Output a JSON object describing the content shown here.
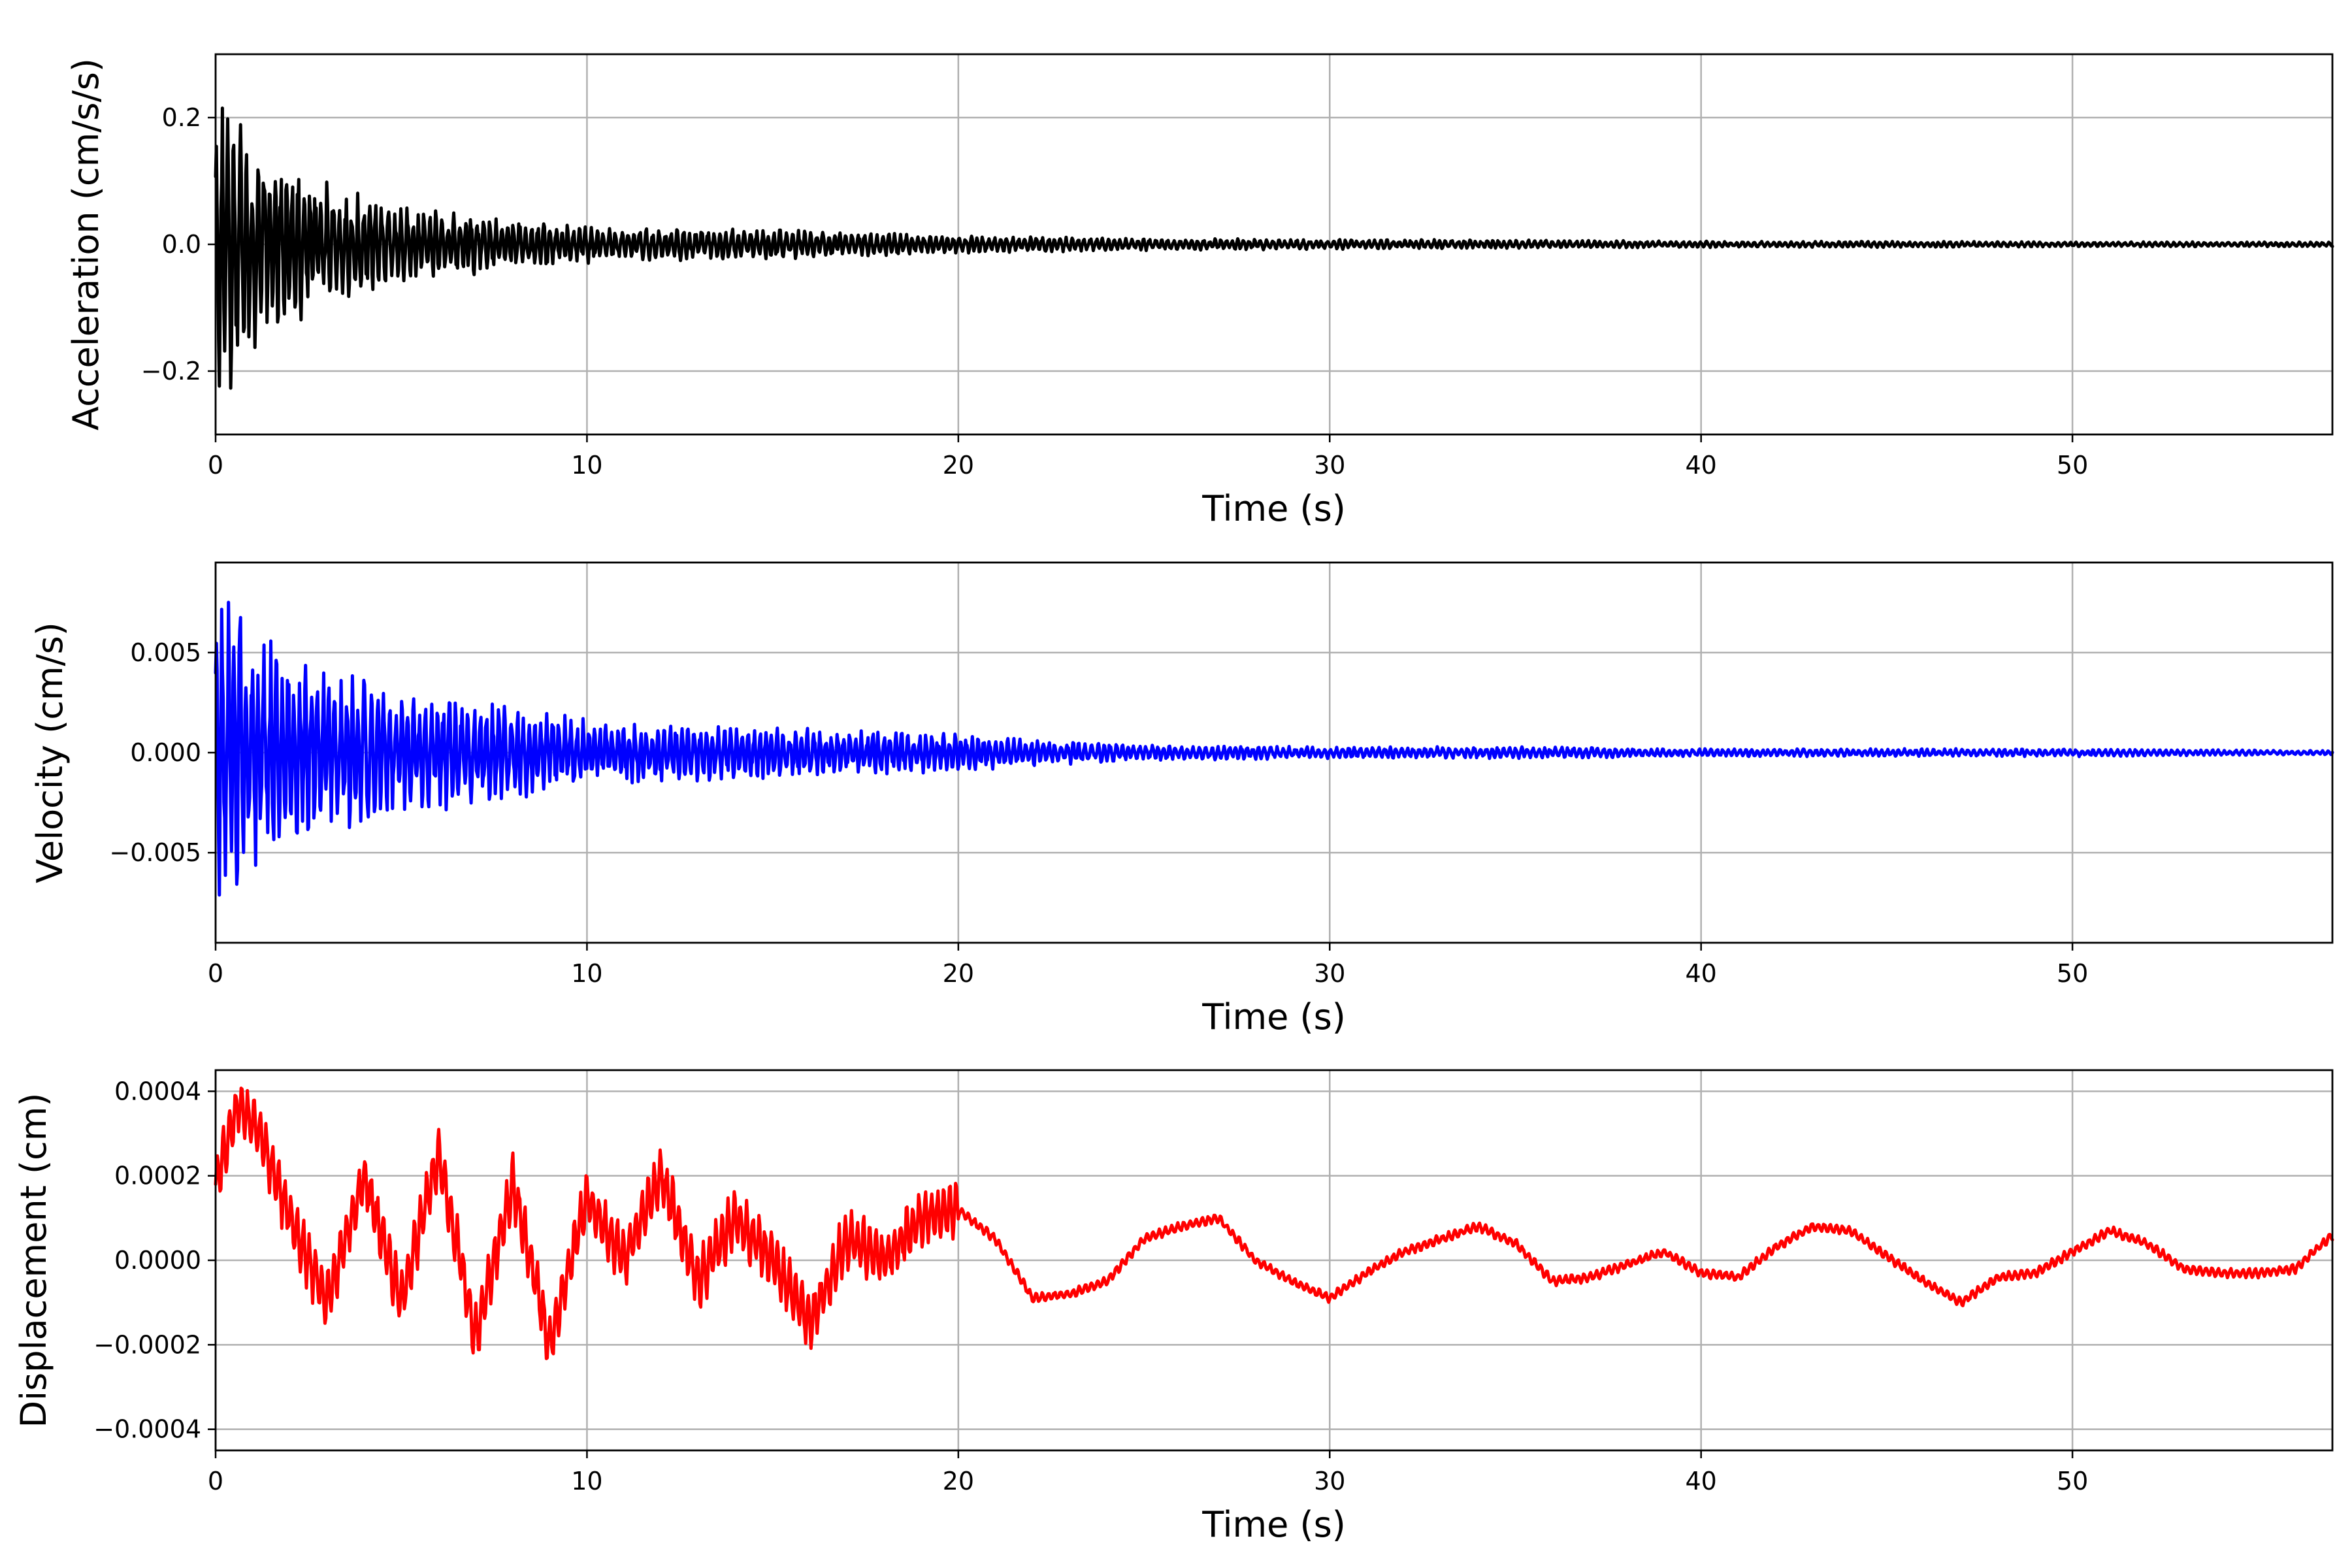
{
  "chart_data": [
    {
      "type": "line",
      "xlabel": "Time (s)",
      "ylabel": "Acceleration (cm/s/s)",
      "xlim": [
        0,
        57
      ],
      "ylim": [
        -0.3,
        0.3
      ],
      "xticks": [
        0,
        10,
        20,
        30,
        40,
        50
      ],
      "yticks": [
        -0.2,
        0.0,
        0.2
      ],
      "xtick_labels": [
        "0",
        "10",
        "20",
        "30",
        "40",
        "50"
      ],
      "ytick_labels": [
        "−0.2",
        "0.0",
        "0.2"
      ],
      "grid": true,
      "color": "#000000",
      "series": [
        {
          "x": [
            0,
            0.5,
            1,
            1.5,
            2,
            3,
            4,
            5,
            7,
            10,
            15,
            20,
            25,
            30,
            35,
            40,
            45,
            50,
            57
          ],
          "envelope": [
            0.28,
            0.24,
            0.18,
            0.15,
            0.14,
            0.1,
            0.08,
            0.06,
            0.05,
            0.03,
            0.025,
            0.015,
            0.01,
            0.008,
            0.007,
            0.005,
            0.005,
            0.004,
            0.004
          ]
        }
      ]
    },
    {
      "type": "line",
      "xlabel": "Time (s)",
      "ylabel": "Velocity (cm/s)",
      "xlim": [
        0,
        57
      ],
      "ylim": [
        -0.0095,
        0.0095
      ],
      "xticks": [
        0,
        10,
        20,
        30,
        40,
        50
      ],
      "yticks": [
        -0.005,
        0.0,
        0.005
      ],
      "xtick_labels": [
        "0",
        "10",
        "20",
        "30",
        "40",
        "50"
      ],
      "ytick_labels": [
        "−0.005",
        "0.000",
        "0.005"
      ],
      "grid": true,
      "color": "#0000ff",
      "series": [
        {
          "x": [
            0,
            0.5,
            1,
            2,
            3,
            4,
            5,
            6,
            7,
            10,
            15,
            20,
            22,
            25,
            30,
            35,
            40,
            45,
            50,
            57
          ],
          "envelope": [
            0.008,
            0.0087,
            0.0065,
            0.005,
            0.004,
            0.004,
            0.003,
            0.003,
            0.0028,
            0.0017,
            0.0013,
            0.001,
            0.0007,
            0.0004,
            0.0003,
            0.0003,
            0.0002,
            0.0002,
            0.0002,
            0.0001
          ]
        }
      ]
    },
    {
      "type": "line",
      "xlabel": "Time (s)",
      "ylabel": "Displacement (cm)",
      "xlim": [
        0,
        57
      ],
      "ylim": [
        -0.00045,
        0.00045
      ],
      "xticks": [
        0,
        10,
        20,
        30,
        40,
        50
      ],
      "yticks": [
        -0.0004,
        -0.0002,
        0.0,
        0.0002,
        0.0004
      ],
      "xtick_labels": [
        "0",
        "10",
        "20",
        "30",
        "40",
        "50"
      ],
      "ytick_labels": [
        "−0.0004",
        "−0.0002",
        "0.0000",
        "0.0002",
        "0.0004"
      ],
      "grid": true,
      "color": "#ff0000",
      "series": [
        {
          "x": [
            0,
            0.6,
            1.2,
            2,
            3,
            4,
            5,
            6,
            7,
            8,
            9,
            10,
            11,
            12,
            13,
            14,
            15,
            16,
            17,
            18,
            19,
            20,
            21,
            22,
            23,
            24,
            25,
            26,
            27,
            28,
            29,
            30,
            31,
            32,
            33,
            34,
            35,
            36,
            37,
            38,
            39,
            40,
            41,
            42,
            43,
            44,
            45,
            46,
            47,
            48,
            49,
            50,
            51,
            52,
            53,
            54,
            55,
            56,
            57
          ],
          "values": [
            0.00018,
            0.00037,
            0.0003,
            0.0001,
            -0.0001,
            0.0002,
            -0.0001,
            0.00025,
            -0.00018,
            0.00018,
            -0.0002,
            0.00015,
            0.0,
            0.0002,
            -5e-05,
            0.0001,
            0.0,
            -0.00015,
            5e-05,
            0.0,
            0.0001,
            0.00012,
            5e-05,
            -9e-05,
            -8e-05,
            -5e-05,
            5e-05,
            8e-05,
            0.0001,
            0.0,
            -5e-05,
            -9e-05,
            -3e-05,
            2e-05,
            5e-05,
            8e-05,
            4e-05,
            -5e-05,
            -4e-05,
            -1e-05,
            2e-05,
            -3e-05,
            -4e-05,
            3e-05,
            8e-05,
            7e-05,
            1e-05,
            -5e-05,
            -0.0001,
            -4e-05,
            -3e-05,
            2e-05,
            7e-05,
            4e-05,
            -2e-05,
            -3e-05,
            -3e-05,
            -2e-05,
            6e-05
          ]
        }
      ]
    }
  ]
}
